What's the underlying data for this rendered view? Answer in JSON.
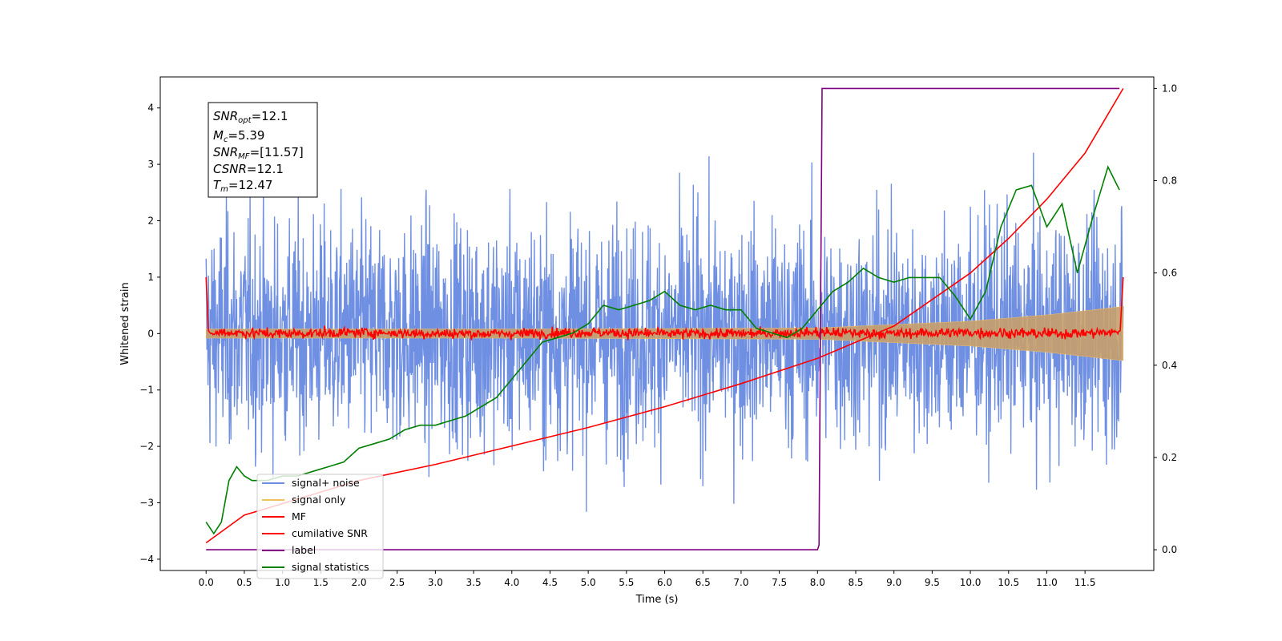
{
  "chart_data": {
    "type": "line",
    "xlabel": "Time (s)",
    "ylabel": "Whitened strain",
    "xlim": [
      -0.6,
      12.4
    ],
    "ylim": [
      -4.2,
      4.55
    ],
    "y2lim": [
      -0.045,
      1.025
    ],
    "x_ticks": [
      "0.0",
      "0.5",
      "1.0",
      "1.5",
      "2.0",
      "2.5",
      "3.0",
      "3.5",
      "4.0",
      "4.5",
      "5.0",
      "5.5",
      "6.0",
      "6.5",
      "7.0",
      "7.5",
      "8.0",
      "8.5",
      "9.0",
      "9.5",
      "10.0",
      "10.5",
      "11.0",
      "11.5"
    ],
    "y_ticks": [
      "4",
      "3",
      "2",
      "1",
      "0",
      "−1",
      "−2",
      "−3",
      "−4"
    ],
    "y2_ticks": [
      "1.0",
      "0.8",
      "0.6",
      "0.4",
      "0.2",
      "0.0"
    ],
    "grid": false,
    "legend_position": "bottom-left",
    "legend": [
      "signal+ noise",
      "signal only",
      "MF",
      "cumilative SNR",
      "label",
      "signal statistics"
    ],
    "annotation": {
      "snr_opt_label": "SNR",
      "snr_opt_sub": "opt",
      "snr_opt_value": "=12.1",
      "mc_label": "M",
      "mc_sub": "c",
      "mc_value": "=5.39",
      "snr_mf_label": "SNR",
      "snr_mf_sub": "MF",
      "snr_mf_value": "=[11.57]",
      "csnr_label": "CSNR",
      "csnr_value": "=12.1",
      "tm_label": "T",
      "tm_sub": "m",
      "tm_value": "=12.47"
    },
    "series": [
      {
        "name": "signal+ noise",
        "color": "#6f8fe3",
        "axis": "left",
        "kind": "noise",
        "x_range": [
          0,
          12
        ],
        "std": 1.0
      },
      {
        "name": "signal only",
        "color": "#c8a06a",
        "axis": "left",
        "kind": "chirp",
        "envelope_t": [
          0,
          4,
          8,
          10,
          11,
          12
        ],
        "envelope_amp": [
          0.08,
          0.08,
          0.1,
          0.22,
          0.33,
          0.48
        ]
      },
      {
        "name": "MF",
        "color": "#ff0000",
        "axis": "left",
        "x": [
          0,
          0.03,
          0.06,
          0.2,
          1,
          2,
          3,
          4,
          5,
          6,
          7,
          8,
          9,
          10,
          11,
          11.9,
          11.96,
          12.0
        ],
        "y": [
          1.0,
          0.05,
          0.0,
          0.02,
          0.0,
          0.02,
          0.0,
          0.0,
          0.02,
          0.0,
          0.0,
          0.02,
          0.0,
          0.02,
          0.0,
          0.02,
          0.05,
          1.0
        ]
      },
      {
        "name": "cumilative SNR",
        "color": "#ff0000",
        "axis": "right",
        "x": [
          0,
          0.5,
          1,
          2,
          3,
          4,
          5,
          6,
          7,
          8,
          9,
          10,
          10.5,
          11,
          11.5,
          12
        ],
        "y": [
          0.015,
          0.075,
          0.1,
          0.15,
          0.185,
          0.225,
          0.265,
          0.31,
          0.36,
          0.415,
          0.485,
          0.6,
          0.675,
          0.76,
          0.86,
          1.0
        ]
      },
      {
        "name": "label",
        "color": "#800080",
        "axis": "right",
        "x": [
          0,
          8.0,
          8.02,
          8.06,
          11.95
        ],
        "y": [
          0.0,
          0.0,
          0.01,
          1.0,
          1.0
        ]
      },
      {
        "name": "signal statistics",
        "color": "#008000",
        "axis": "right",
        "x": [
          0,
          0.1,
          0.2,
          0.3,
          0.4,
          0.5,
          0.6,
          0.8,
          1.0,
          1.2,
          1.4,
          1.6,
          1.8,
          2.0,
          2.2,
          2.4,
          2.6,
          2.8,
          3.0,
          3.2,
          3.4,
          3.6,
          3.8,
          4.0,
          4.2,
          4.4,
          4.6,
          4.8,
          5.0,
          5.2,
          5.4,
          5.6,
          5.8,
          6.0,
          6.2,
          6.4,
          6.6,
          6.8,
          7.0,
          7.2,
          7.4,
          7.6,
          7.8,
          8.0,
          8.2,
          8.4,
          8.6,
          8.8,
          9.0,
          9.2,
          9.4,
          9.6,
          9.8,
          10.0,
          10.2,
          10.4,
          10.6,
          10.8,
          11.0,
          11.2,
          11.4,
          11.6,
          11.8,
          11.95
        ],
        "y": [
          0.06,
          0.035,
          0.06,
          0.15,
          0.18,
          0.16,
          0.15,
          0.15,
          0.16,
          0.16,
          0.17,
          0.18,
          0.19,
          0.22,
          0.23,
          0.24,
          0.26,
          0.27,
          0.27,
          0.28,
          0.29,
          0.31,
          0.33,
          0.37,
          0.41,
          0.45,
          0.46,
          0.47,
          0.49,
          0.53,
          0.52,
          0.53,
          0.54,
          0.56,
          0.53,
          0.52,
          0.53,
          0.52,
          0.52,
          0.48,
          0.47,
          0.46,
          0.48,
          0.52,
          0.56,
          0.58,
          0.61,
          0.59,
          0.58,
          0.59,
          0.59,
          0.59,
          0.55,
          0.5,
          0.56,
          0.7,
          0.78,
          0.79,
          0.7,
          0.75,
          0.6,
          0.72,
          0.83,
          0.78
        ]
      }
    ]
  }
}
